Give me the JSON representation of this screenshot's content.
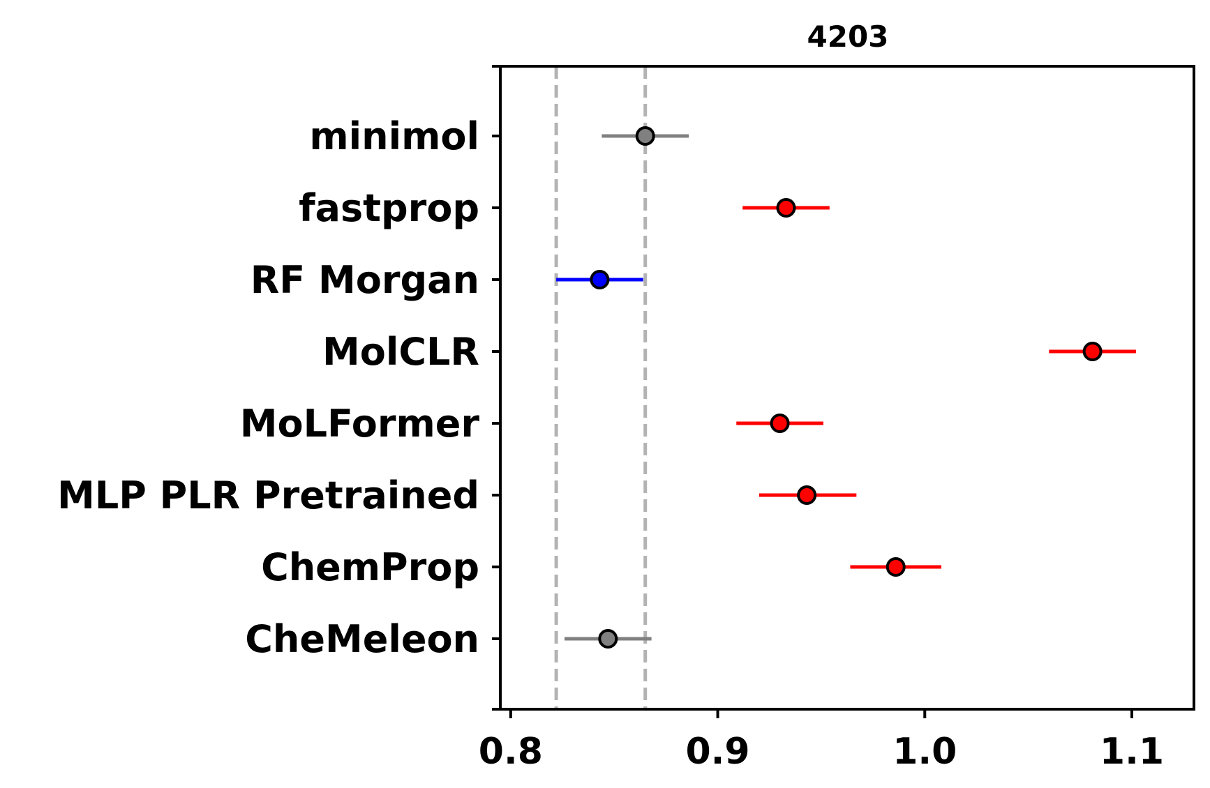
{
  "chart_data": {
    "type": "scatter",
    "title": "4203",
    "xlabel": "",
    "ylabel": "",
    "xlim": [
      0.795,
      1.13
    ],
    "x_ticks": [
      "0.8",
      "0.9",
      "1.0",
      "1.1"
    ],
    "x_tick_values": [
      0.8,
      0.9,
      1.0,
      1.1
    ],
    "reference_lines": [
      0.822,
      0.865
    ],
    "reference_line_color": "#b3b3b3",
    "grid": false,
    "models": [
      {
        "label": "minimol",
        "value": 0.865,
        "lower": 0.844,
        "upper": 0.886,
        "color": "#808080"
      },
      {
        "label": "fastprop",
        "value": 0.933,
        "lower": 0.912,
        "upper": 0.954,
        "color": "#ff0000"
      },
      {
        "label": "RF Morgan",
        "value": 0.843,
        "lower": 0.822,
        "upper": 0.864,
        "color": "#0000ff"
      },
      {
        "label": "MolCLR",
        "value": 1.081,
        "lower": 1.06,
        "upper": 1.102,
        "color": "#ff0000"
      },
      {
        "label": "MoLFormer",
        "value": 0.93,
        "lower": 0.909,
        "upper": 0.951,
        "color": "#ff0000"
      },
      {
        "label": "MLP PLR Pretrained",
        "value": 0.943,
        "lower": 0.92,
        "upper": 0.967,
        "color": "#ff0000"
      },
      {
        "label": "ChemProp",
        "value": 0.986,
        "lower": 0.964,
        "upper": 1.008,
        "color": "#ff0000"
      },
      {
        "label": "CheMeleon",
        "value": 0.847,
        "lower": 0.826,
        "upper": 0.868,
        "color": "#808080"
      }
    ]
  }
}
